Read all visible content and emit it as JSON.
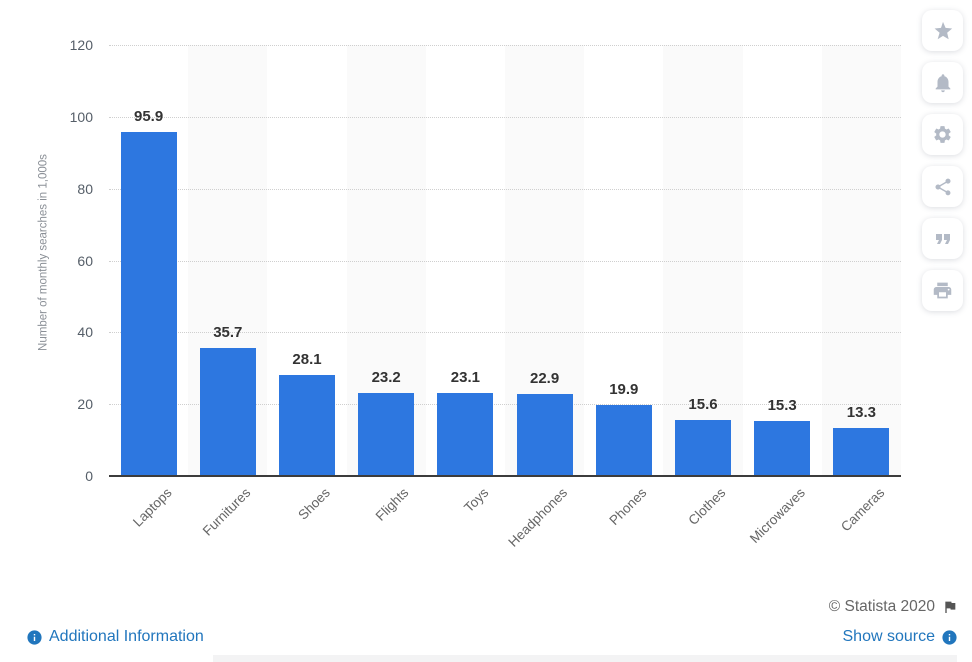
{
  "chart_data": {
    "type": "bar",
    "categories": [
      "Laptops",
      "Furnitures",
      "Shoes",
      "Flights",
      "Toys",
      "Headphones",
      "Phones",
      "Clothes",
      "Microwaves",
      "Cameras"
    ],
    "values": [
      95.9,
      35.7,
      28.1,
      23.2,
      23.1,
      22.9,
      19.9,
      15.6,
      15.3,
      13.3
    ],
    "value_labels": [
      "95.9",
      "35.7",
      "28.1",
      "23.2",
      "23.1",
      "22.9",
      "19.9",
      "15.6",
      "15.3",
      "13.3"
    ],
    "xlabel": "",
    "ylabel": "Number of monthly searches in 1,000s",
    "ylim": [
      0,
      120
    ],
    "yticks": [
      0,
      20,
      40,
      60,
      80,
      100,
      120
    ],
    "grid": "horizontal-dotted",
    "legend": "none",
    "bar_color": "#2d77e0",
    "stripe_color": "#fafafa"
  },
  "toolbar": {
    "icons": [
      "star-icon",
      "bell-icon",
      "gear-icon",
      "share-icon",
      "quote-icon",
      "print-icon"
    ]
  },
  "footer": {
    "additional_information": "Additional Information",
    "copyright": "© Statista 2020",
    "show_source": "Show source"
  },
  "colors": {
    "bar": "#2d77e0",
    "link": "#2176bd",
    "copyright_text": "#666666",
    "icon": "#b3bac6"
  }
}
